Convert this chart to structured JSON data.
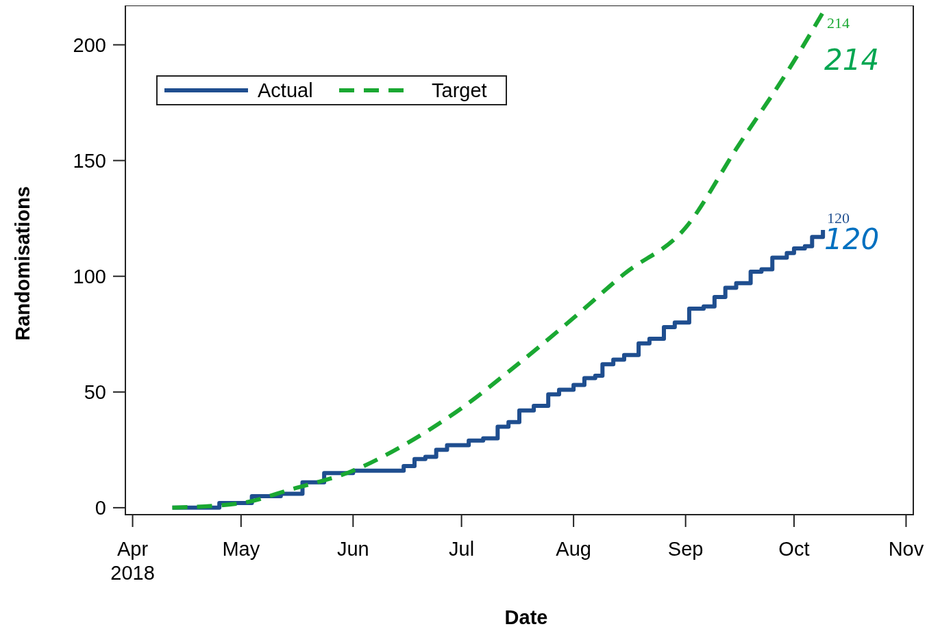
{
  "chart_data": {
    "type": "line",
    "xlabel": "Date",
    "ylabel": "Randomisations",
    "xlim": [
      "2018-03-30",
      "2018-11-03"
    ],
    "xticks": [
      {
        "value": "2018-04-01",
        "label": "Apr\n2018"
      },
      {
        "value": "2018-05-01",
        "label": "May"
      },
      {
        "value": "2018-06-01",
        "label": "Jun"
      },
      {
        "value": "2018-07-01",
        "label": "Jul"
      },
      {
        "value": "2018-08-01",
        "label": "Aug"
      },
      {
        "value": "2018-09-01",
        "label": "Sep"
      },
      {
        "value": "2018-10-01",
        "label": "Oct"
      },
      {
        "value": "2018-11-01",
        "label": "Nov"
      }
    ],
    "ylim": [
      -3,
      217
    ],
    "yticks": [
      0,
      50,
      100,
      150,
      200
    ],
    "grid": false,
    "legend": "top left",
    "series": [
      {
        "name": "Actual",
        "color": "#1f4e8f",
        "type": "step",
        "line_style": "solid",
        "x": [
          "2018-04-12",
          "2018-04-22",
          "2018-04-25",
          "2018-05-01",
          "2018-05-04",
          "2018-05-10",
          "2018-05-12",
          "2018-05-16",
          "2018-05-18",
          "2018-05-21",
          "2018-05-24",
          "2018-05-31",
          "2018-06-01",
          "2018-06-12",
          "2018-06-15",
          "2018-06-18",
          "2018-06-21",
          "2018-06-24",
          "2018-06-27",
          "2018-07-01",
          "2018-07-03",
          "2018-07-07",
          "2018-07-11",
          "2018-07-14",
          "2018-07-17",
          "2018-07-21",
          "2018-07-25",
          "2018-07-28",
          "2018-08-01",
          "2018-08-04",
          "2018-08-07",
          "2018-08-09",
          "2018-08-12",
          "2018-08-15",
          "2018-08-19",
          "2018-08-22",
          "2018-08-26",
          "2018-08-29",
          "2018-09-02",
          "2018-09-06",
          "2018-09-09",
          "2018-09-12",
          "2018-09-15",
          "2018-09-19",
          "2018-09-22",
          "2018-09-25",
          "2018-09-29",
          "2018-10-01",
          "2018-10-04",
          "2018-10-06",
          "2018-10-09"
        ],
        "values": [
          0,
          0,
          2,
          2,
          5,
          5,
          6,
          6,
          11,
          11,
          15,
          15,
          16,
          16,
          18,
          21,
          22,
          25,
          27,
          27,
          29,
          30,
          35,
          37,
          42,
          44,
          49,
          51,
          53,
          56,
          57,
          62,
          64,
          66,
          71,
          73,
          78,
          80,
          86,
          87,
          91,
          95,
          97,
          102,
          103,
          108,
          110,
          112,
          113,
          117,
          120
        ]
      },
      {
        "name": "Target",
        "color": "#1aa832",
        "line_style": "dashed",
        "x": [
          "2018-04-12",
          "2018-05-01",
          "2018-05-15",
          "2018-06-01",
          "2018-06-15",
          "2018-07-01",
          "2018-07-15",
          "2018-08-01",
          "2018-08-15",
          "2018-09-01",
          "2018-09-15",
          "2018-10-01",
          "2018-10-09"
        ],
        "values": [
          0,
          2,
          8,
          16,
          27,
          43,
          60,
          82,
          101,
          121,
          155,
          193,
          214
        ]
      }
    ],
    "annotations": [
      {
        "text": "214",
        "x": "2018-10-09",
        "y": 214
      },
      {
        "text": "214",
        "x": "2018-10-09",
        "y": 214
      },
      {
        "text": "120",
        "x": "2018-10-09",
        "y": 120
      },
      {
        "text": "120",
        "x": "2018-10-09",
        "y": 120
      }
    ]
  }
}
